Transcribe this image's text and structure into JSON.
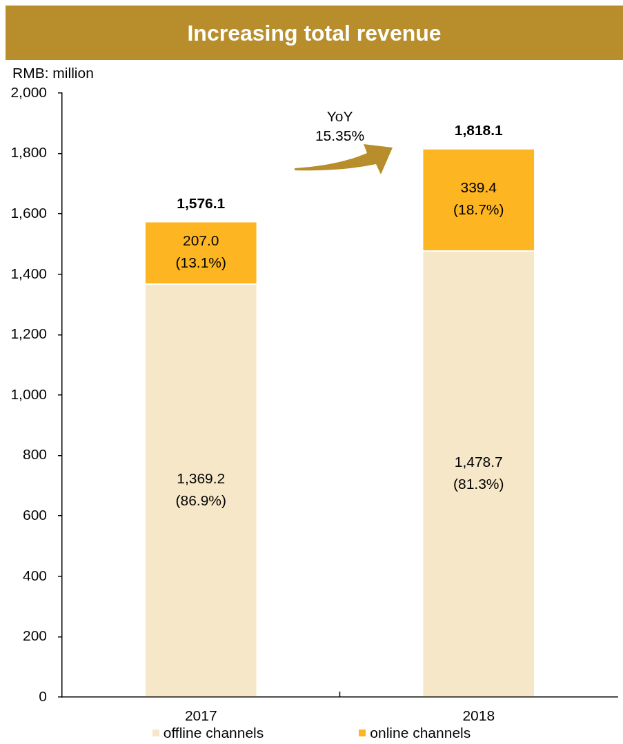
{
  "chart_data": {
    "type": "bar",
    "title": "Increasing total revenue",
    "ylabel": "RMB: million",
    "categories": [
      "2017",
      "2018"
    ],
    "series": [
      {
        "name": "offline channels",
        "color": "#f5e7c7",
        "values": [
          1369.2,
          1478.7
        ],
        "value_labels": [
          "1,369.2\n(86.9%)",
          "1,478.7\n(81.3%)"
        ]
      },
      {
        "name": "online channels",
        "color": "#fdb521",
        "values": [
          207.0,
          339.4
        ],
        "value_labels": [
          "207.0\n(13.1%)",
          "339.4\n(18.7%)"
        ]
      }
    ],
    "stacked": true,
    "totals": [
      "1,576.1",
      "1,818.1"
    ],
    "ylim": [
      0,
      2000
    ],
    "yticks": [
      0,
      200,
      400,
      600,
      800,
      {
        "value": 1000,
        "label": "1,000"
      },
      {
        "value": 1200,
        "label": "1,200"
      },
      {
        "value": 1400,
        "label": "1,400"
      },
      {
        "value": 1600,
        "label": "1,600"
      },
      {
        "value": 1800,
        "label": "1,800"
      },
      {
        "value": 2000,
        "label": "2,000"
      }
    ],
    "annotations": [
      "YoY\n15.35%"
    ],
    "legend": "bottom"
  }
}
